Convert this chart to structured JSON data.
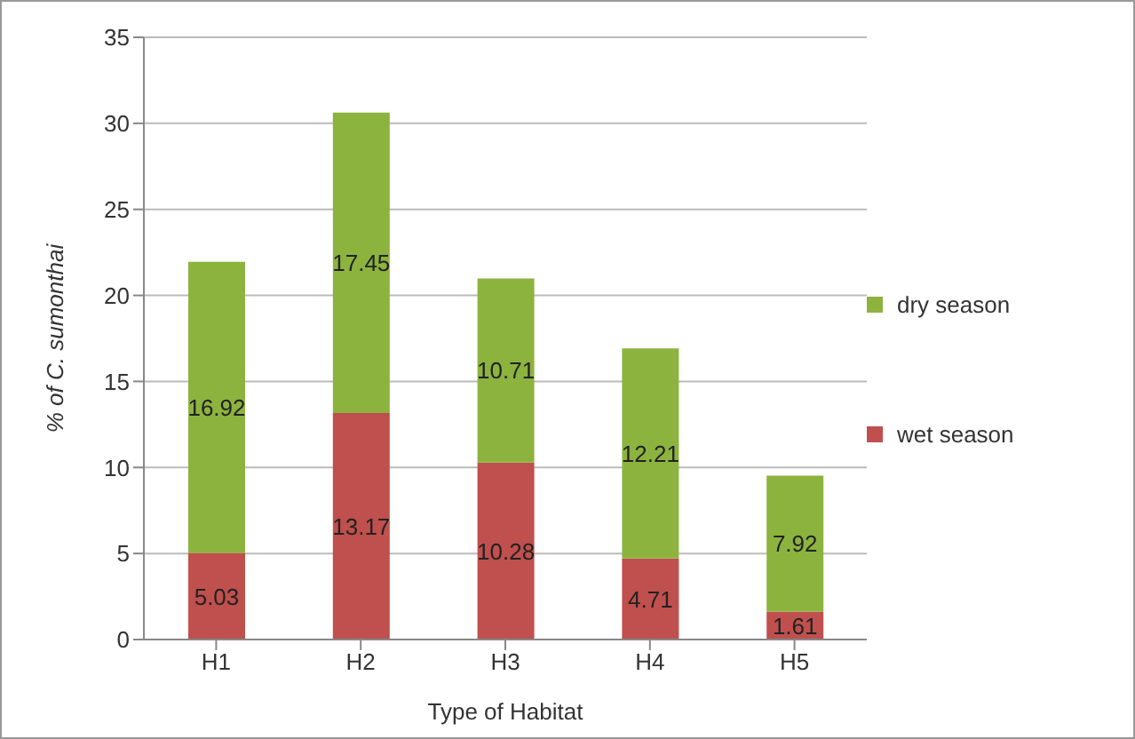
{
  "chart_data": {
    "type": "bar",
    "stacked": true,
    "xlabel": "Type of Habitat",
    "ylabel": "% of C. sumonthai",
    "categories": [
      "H1",
      "H2",
      "H3",
      "H4",
      "H5"
    ],
    "series": [
      {
        "name": "wet season",
        "color": "#c0504d",
        "values": [
          5.03,
          13.17,
          10.28,
          4.71,
          1.61
        ]
      },
      {
        "name": "dry season",
        "color": "#8db33f",
        "values": [
          16.92,
          17.45,
          10.71,
          12.21,
          7.92
        ]
      }
    ],
    "ylim": [
      0,
      35
    ],
    "yticks": [
      0,
      5,
      10,
      15,
      20,
      25,
      30,
      35
    ],
    "grid": "y",
    "legend": "right",
    "data_labels": true
  }
}
